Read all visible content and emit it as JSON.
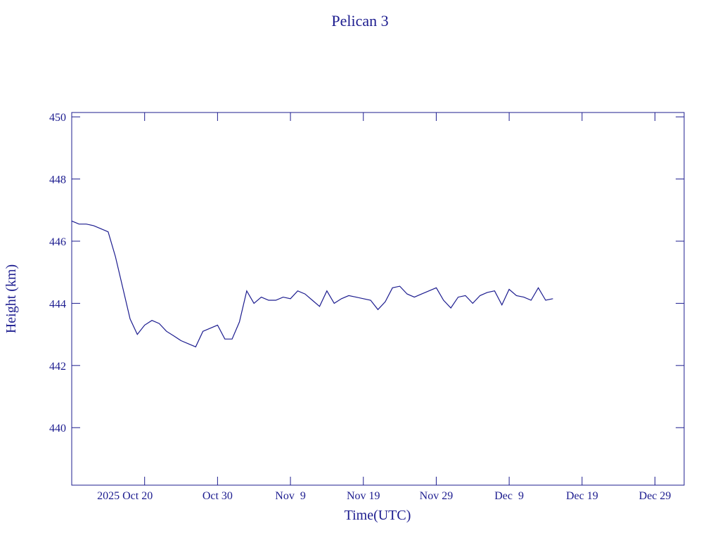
{
  "chart_data": {
    "type": "line",
    "title": "Pelican 3",
    "xlabel": "Time(UTC)",
    "ylabel": "Height (km)",
    "color": "#1c1c8f",
    "xlim": [
      "2025-10-10",
      "2026-01-02"
    ],
    "xticks": [
      {
        "value": "2025-10-20",
        "label": "2025 Oct 20"
      },
      {
        "value": "2025-10-30",
        "label": "Oct 30"
      },
      {
        "value": "2025-11-09",
        "label": "Nov  9"
      },
      {
        "value": "2025-11-19",
        "label": "Nov 19"
      },
      {
        "value": "2025-11-29",
        "label": "Nov 29"
      },
      {
        "value": "2025-12-09",
        "label": "Dec  9"
      },
      {
        "value": "2025-12-19",
        "label": "Dec 19"
      },
      {
        "value": "2025-12-29",
        "label": "Dec 29"
      }
    ],
    "ylim": [
      438.15,
      450.14
    ],
    "yticks": [
      440,
      442,
      444,
      446,
      448,
      450
    ],
    "x": [
      "2025-10-10",
      "2025-10-11",
      "2025-10-12",
      "2025-10-13",
      "2025-10-14",
      "2025-10-15",
      "2025-10-16",
      "2025-10-17",
      "2025-10-18",
      "2025-10-19",
      "2025-10-20",
      "2025-10-21",
      "2025-10-22",
      "2025-10-23",
      "2025-10-24",
      "2025-10-25",
      "2025-10-26",
      "2025-10-27",
      "2025-10-28",
      "2025-10-29",
      "2025-10-30",
      "2025-10-31",
      "2025-11-01",
      "2025-11-02",
      "2025-11-03",
      "2025-11-04",
      "2025-11-05",
      "2025-11-06",
      "2025-11-07",
      "2025-11-08",
      "2025-11-09",
      "2025-11-10",
      "2025-11-11",
      "2025-11-12",
      "2025-11-13",
      "2025-11-14",
      "2025-11-15",
      "2025-11-16",
      "2025-11-17",
      "2025-11-18",
      "2025-11-19",
      "2025-11-20",
      "2025-11-21",
      "2025-11-22",
      "2025-11-23",
      "2025-11-24",
      "2025-11-25",
      "2025-11-26",
      "2025-11-27",
      "2025-11-28",
      "2025-11-29",
      "2025-11-30",
      "2025-12-01",
      "2025-12-02",
      "2025-12-03",
      "2025-12-04",
      "2025-12-05",
      "2025-12-06",
      "2025-12-07",
      "2025-12-08",
      "2025-12-09",
      "2025-12-10",
      "2025-12-11",
      "2025-12-12",
      "2025-12-13",
      "2025-12-14",
      "2025-12-15"
    ],
    "values": [
      446.65,
      446.55,
      446.55,
      446.5,
      446.4,
      446.3,
      445.5,
      444.5,
      443.5,
      443.0,
      443.3,
      443.45,
      443.35,
      443.1,
      442.95,
      442.8,
      442.7,
      442.6,
      443.1,
      443.2,
      443.3,
      442.85,
      442.85,
      443.4,
      444.4,
      444.0,
      444.2,
      444.1,
      444.1,
      444.2,
      444.15,
      444.4,
      444.3,
      444.1,
      443.9,
      444.4,
      444.0,
      444.15,
      444.25,
      444.2,
      444.15,
      444.1,
      443.8,
      444.05,
      444.5,
      444.55,
      444.3,
      444.2,
      444.3,
      444.4,
      444.5,
      444.1,
      443.85,
      444.2,
      444.25,
      444.0,
      444.25,
      444.35,
      444.4,
      443.95,
      444.45,
      444.25,
      444.2,
      444.1,
      444.5,
      444.1,
      444.15
    ]
  }
}
